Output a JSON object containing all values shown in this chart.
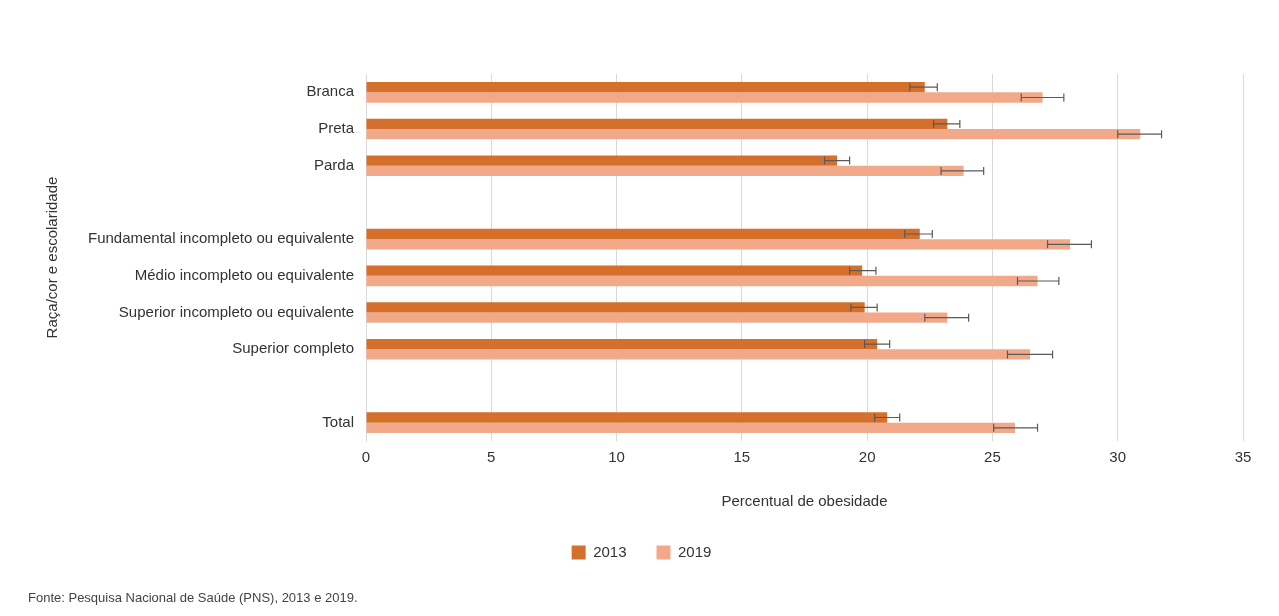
{
  "chart_data": {
    "type": "bar",
    "orientation": "horizontal",
    "categories": [
      "Branca",
      "Preta",
      "Parda",
      null,
      "Fundamental incompleto ou equivalente",
      "Médio incompleto ou equivalente",
      "Superior incompleto ou equivalente",
      "Superior completo",
      null,
      "Total"
    ],
    "series": [
      {
        "name": "2013",
        "color": "#d4702b",
        "values": [
          22.3,
          23.2,
          18.8,
          null,
          22.1,
          19.8,
          19.9,
          20.4,
          null,
          20.8
        ],
        "errors": [
          [
            21.7,
            22.8
          ],
          [
            22.65,
            23.7
          ],
          [
            18.3,
            19.3
          ],
          null,
          [
            21.5,
            22.6
          ],
          [
            19.3,
            20.35
          ],
          [
            19.35,
            20.4
          ],
          [
            19.9,
            20.9
          ],
          null,
          [
            20.3,
            21.3
          ]
        ]
      },
      {
        "name": "2019",
        "color": "#f2a98a",
        "values": [
          27.0,
          30.9,
          23.85,
          null,
          28.1,
          26.8,
          23.2,
          26.5,
          null,
          25.9
        ],
        "errors": [
          [
            26.15,
            27.85
          ],
          [
            30.0,
            31.75
          ],
          [
            22.95,
            24.65
          ],
          null,
          [
            27.2,
            28.95
          ],
          [
            26.0,
            27.65
          ],
          [
            22.3,
            24.05
          ],
          [
            25.6,
            27.4
          ],
          null,
          [
            25.05,
            26.8
          ]
        ]
      }
    ],
    "xlim": [
      0,
      35
    ],
    "xticks": [
      0,
      5,
      10,
      15,
      20,
      25,
      30,
      35
    ],
    "xlabel": "Percentual de obesidade",
    "ylabel": "Raça/cor e escolaridade",
    "grid": "x",
    "legend": "bottom",
    "annotations": [
      "Fonte: Pesquisa Nacional de Saúde (PNS), 2013 e 2019."
    ]
  }
}
